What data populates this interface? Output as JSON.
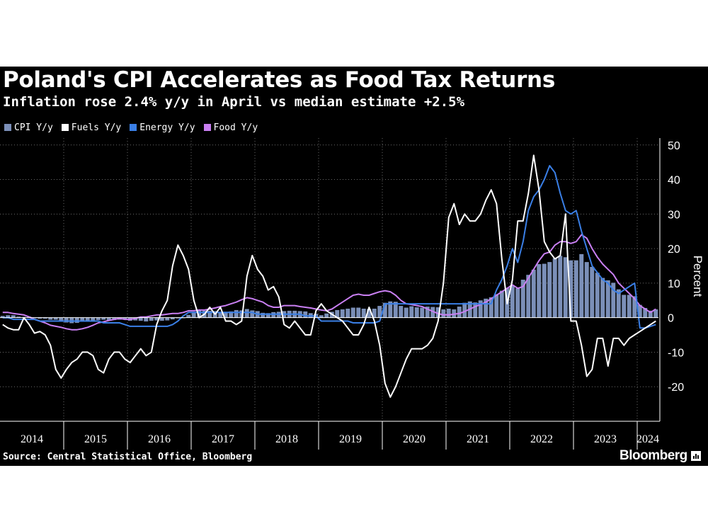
{
  "title": "Poland's CPI Accelerates as Food Tax Returns",
  "subtitle": "Inflation rose 2.4% y/y in April vs median estimate +2.5%",
  "source": "Source: Central Statistical Office, Bloomberg",
  "brand": "Bloomberg",
  "colors": {
    "background": "#000000",
    "cpi": "#7b8fb8",
    "fuels": "#ffffff",
    "energy": "#3a7fe6",
    "food": "#c97ff2",
    "grid": "#6a6a6a"
  },
  "chart_data": {
    "type": "bar+line",
    "ylabel": "Percent",
    "ylim": [
      -30,
      52
    ],
    "yticks": [
      50,
      40,
      30,
      20,
      10,
      0,
      -10,
      -20
    ],
    "ytick_labels": [
      "50",
      "40",
      "30",
      "20",
      "10",
      "0",
      "-10",
      "-20"
    ],
    "x_start": "2014-01",
    "x_end": "2024-04",
    "year_labels": [
      "2014",
      "2015",
      "2016",
      "2017",
      "2018",
      "2019",
      "2020",
      "2021",
      "2022",
      "2023",
      "2024"
    ],
    "legend": [
      "CPI Y/y",
      "Fuels Y/y",
      "Energy Y/y",
      "Food Y/y"
    ],
    "series": [
      {
        "name": "CPI Y/y",
        "kind": "bar",
        "color": "#7b8fb8",
        "values": [
          0.5,
          0.7,
          0.7,
          0.3,
          0.2,
          0.3,
          -0.2,
          -0.3,
          -0.3,
          -0.6,
          -0.6,
          -1.0,
          -1.4,
          -1.6,
          -1.5,
          -1.1,
          -0.9,
          -0.8,
          -0.7,
          -0.6,
          -0.8,
          -0.7,
          -0.6,
          -0.5,
          -0.9,
          -0.8,
          -0.9,
          -1.1,
          -0.9,
          -0.8,
          -0.9,
          -0.8,
          -0.5,
          -0.2,
          0.0,
          0.8,
          1.7,
          2.2,
          2.0,
          2.0,
          1.9,
          1.5,
          1.7,
          1.8,
          2.2,
          2.1,
          2.5,
          2.1,
          1.9,
          1.4,
          1.3,
          1.6,
          1.7,
          1.9,
          2.0,
          2.0,
          1.9,
          1.8,
          1.3,
          1.1,
          0.7,
          1.2,
          1.7,
          2.2,
          2.4,
          2.6,
          2.9,
          2.9,
          2.6,
          2.5,
          2.6,
          3.4,
          4.3,
          4.7,
          4.6,
          3.4,
          2.9,
          3.3,
          3.0,
          2.9,
          3.2,
          3.1,
          3.0,
          2.4,
          2.6,
          2.4,
          3.2,
          4.3,
          4.7,
          4.4,
          5.0,
          5.5,
          5.9,
          6.8,
          7.8,
          8.6,
          9.4,
          8.5,
          11.0,
          12.4,
          13.9,
          15.5,
          15.6,
          16.1,
          17.2,
          17.9,
          17.5,
          16.6,
          16.6,
          18.4,
          16.1,
          14.7,
          13.0,
          11.5,
          10.8,
          10.1,
          8.2,
          6.6,
          6.6,
          6.2,
          3.7,
          2.8,
          2.0,
          2.4
        ]
      },
      {
        "name": "Fuels Y/y",
        "kind": "line",
        "color": "#ffffff",
        "values": [
          -2,
          -3,
          -3.5,
          -3.5,
          0,
          -2,
          -4.5,
          -4,
          -5,
          -8,
          -15,
          -17.5,
          -15,
          -13,
          -12,
          -10,
          -10,
          -11,
          -15,
          -16,
          -12,
          -10,
          -10,
          -12,
          -13,
          -11,
          -9,
          -11,
          -10,
          -2,
          2,
          5,
          15,
          21,
          18,
          14,
          5,
          0,
          1,
          3,
          1,
          3,
          -1,
          -1,
          -2,
          -1,
          12,
          18,
          14,
          12,
          8,
          9,
          6,
          -2,
          -3,
          -1,
          -3,
          -5,
          -5,
          2,
          4,
          2,
          1,
          0,
          -1,
          -3,
          -5,
          -5,
          -2,
          3,
          -1,
          -8,
          -19,
          -23,
          -20,
          -16,
          -12,
          -9,
          -9,
          -9,
          -8,
          -6,
          -1,
          10,
          29,
          33,
          27,
          30,
          28,
          28,
          30,
          34,
          37,
          33,
          17,
          4,
          11,
          28,
          28,
          36,
          47,
          37,
          22,
          19,
          17,
          18,
          30,
          -1,
          -1,
          -8,
          -17,
          -15,
          -6,
          -6,
          -14,
          -6,
          -6,
          -8,
          -6,
          -5,
          -4,
          -3,
          -2,
          -1
        ]
      },
      {
        "name": "Energy Y/y",
        "kind": "line",
        "color": "#3a7fe6",
        "values": [
          0,
          0,
          -0.5,
          -0.5,
          -0.5,
          -0.5,
          -0.5,
          -1,
          -1,
          -1,
          -1,
          -1,
          -1,
          -1,
          -1,
          -1,
          -1,
          -1,
          -1,
          -1.5,
          -1.5,
          -1.5,
          -1.5,
          -2,
          -2.5,
          -2.5,
          -2.5,
          -2.5,
          -2.5,
          -2.5,
          -2.5,
          -2.5,
          -2,
          -1,
          0.5,
          1.5,
          1.5,
          1.5,
          1.5,
          1.5,
          1.5,
          1.5,
          1.5,
          1.5,
          1.5,
          1.5,
          1.5,
          1.5,
          1,
          1,
          1,
          1,
          1,
          1,
          1,
          1,
          1,
          0.5,
          0.5,
          0.5,
          -1,
          -1,
          -1,
          -1,
          -1,
          -1,
          -1.5,
          -1.5,
          -1.5,
          -1.5,
          -1.5,
          -1,
          4,
          4,
          4,
          4,
          4,
          4,
          4,
          4,
          4,
          4,
          4,
          4,
          4,
          4,
          4,
          4,
          4,
          4,
          4,
          4,
          4,
          8,
          11,
          15,
          20,
          16,
          22,
          31,
          35,
          37,
          40,
          44,
          42,
          36,
          31,
          30,
          31,
          25,
          20,
          15,
          13,
          11,
          10,
          8,
          7,
          8,
          9,
          10,
          -3,
          -3,
          -2.5,
          -2
        ]
      },
      {
        "name": "Food Y/y",
        "kind": "line",
        "color": "#c97ff2",
        "values": [
          1.5,
          1.5,
          1.2,
          1.0,
          0.8,
          0.2,
          -0.5,
          -1.0,
          -1.5,
          -2.2,
          -2.5,
          -2.8,
          -3.2,
          -3.5,
          -3.5,
          -3.2,
          -2.8,
          -2.2,
          -1.5,
          -1.2,
          -0.8,
          -0.5,
          -0.2,
          -0.5,
          -0.5,
          -0.2,
          0.2,
          0.2,
          0.5,
          0.8,
          0.8,
          1.0,
          1.2,
          1.2,
          1.5,
          2.0,
          2.0,
          2.2,
          2.2,
          2.5,
          2.8,
          3.2,
          3.5,
          4.0,
          4.5,
          5.2,
          5.8,
          5.5,
          5.0,
          4.5,
          3.5,
          3.0,
          3.0,
          3.5,
          3.5,
          3.5,
          3.2,
          3.0,
          2.8,
          2.5,
          2.2,
          2.0,
          2.5,
          3.5,
          4.5,
          5.5,
          6.5,
          6.8,
          6.5,
          6.5,
          7.0,
          7.5,
          7.8,
          7.5,
          6.5,
          5.0,
          4.0,
          3.8,
          3.5,
          3.2,
          2.5,
          1.8,
          1.2,
          0.8,
          0.8,
          1.0,
          1.2,
          1.8,
          2.5,
          3.2,
          3.8,
          4.5,
          5.5,
          6.5,
          7.5,
          8.5,
          9.5,
          8.5,
          9.0,
          11.5,
          14.0,
          16.5,
          18.5,
          19.0,
          21.0,
          22.0,
          22.0,
          21.5,
          22.0,
          24.0,
          23.0,
          20.0,
          17.5,
          15.5,
          14.0,
          12.5,
          10.0,
          8.5,
          7.0,
          5.5,
          3.5,
          2.5,
          1.5,
          2.5
        ]
      }
    ]
  }
}
